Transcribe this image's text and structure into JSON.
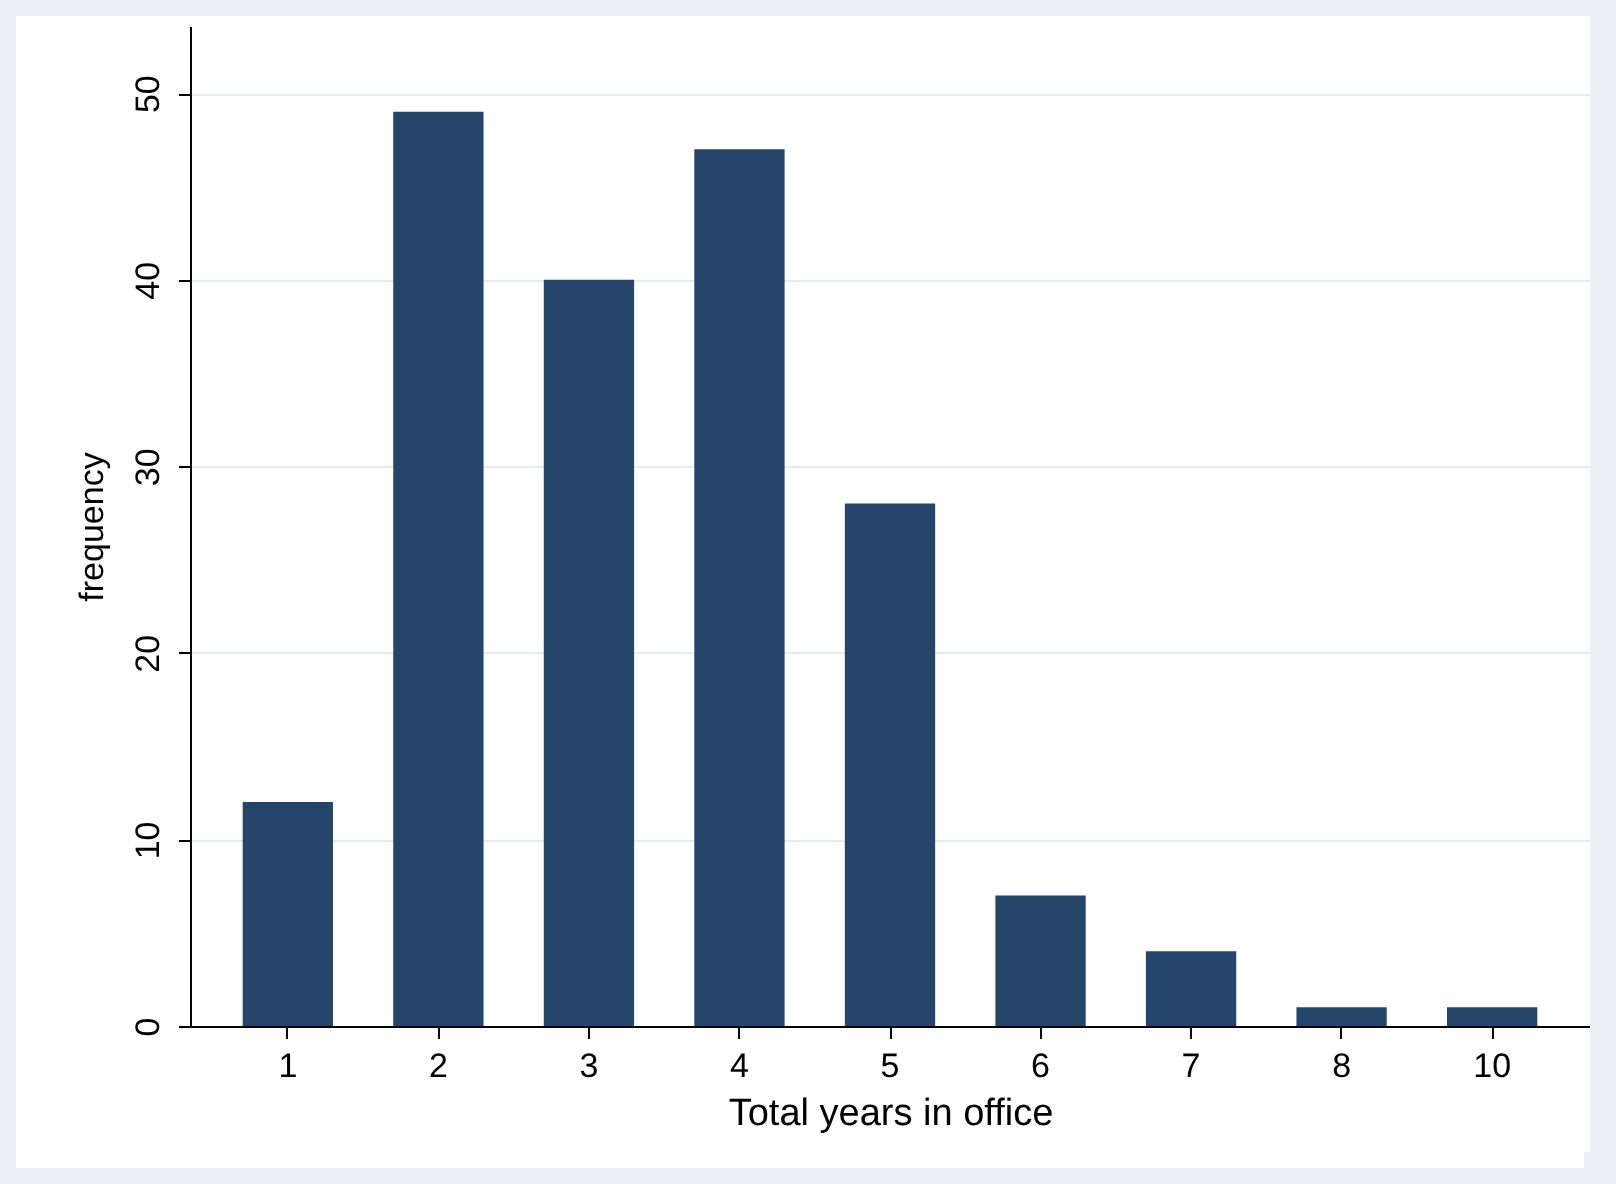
{
  "chart_data": {
    "type": "bar",
    "xlabel": "Total years in office",
    "ylabel": "frequency",
    "categories": [
      "1",
      "2",
      "3",
      "4",
      "5",
      "6",
      "7",
      "8",
      "10"
    ],
    "values": [
      12,
      49,
      40,
      47,
      28,
      7,
      4,
      1,
      1
    ],
    "color": "#26456a",
    "ylim": [
      0,
      53.6
    ],
    "yticks": [
      0,
      10,
      20,
      30,
      40,
      50
    ],
    "grid": "y"
  }
}
